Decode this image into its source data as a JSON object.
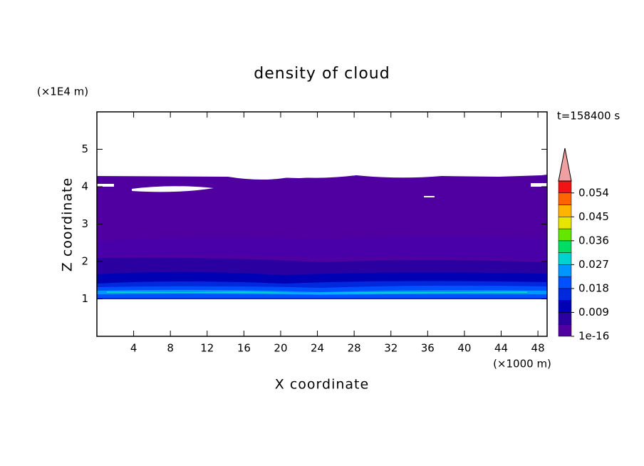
{
  "chart_data": {
    "type": "contour",
    "title": "density of cloud",
    "xlabel": "X coordinate",
    "ylabel": "Z coordinate",
    "xunit": "(×1000 m)",
    "yunit": "(×1E4 m)",
    "annotation": "t=158400 s",
    "xlim": [
      0,
      49
    ],
    "xticks": [
      4,
      8,
      12,
      16,
      20,
      24,
      28,
      32,
      36,
      40,
      44,
      48
    ],
    "ylim": [
      0,
      6
    ],
    "yticks": [
      1,
      2,
      3,
      4,
      5
    ],
    "colorbar": {
      "lim": [
        0,
        0.0585
      ],
      "ticks": [
        1e-16,
        0.009,
        0.018,
        0.027,
        0.036,
        0.045,
        0.054
      ],
      "colors": [
        "#5000a0",
        "#2a00a0",
        "#0000b4",
        "#0028dc",
        "#0050ff",
        "#0096ff",
        "#00d2d2",
        "#00dc64",
        "#64e600",
        "#e6e600",
        "#ffb400",
        "#ff6400",
        "#f01414"
      ],
      "extend_color": "#f0a0a0"
    }
  }
}
